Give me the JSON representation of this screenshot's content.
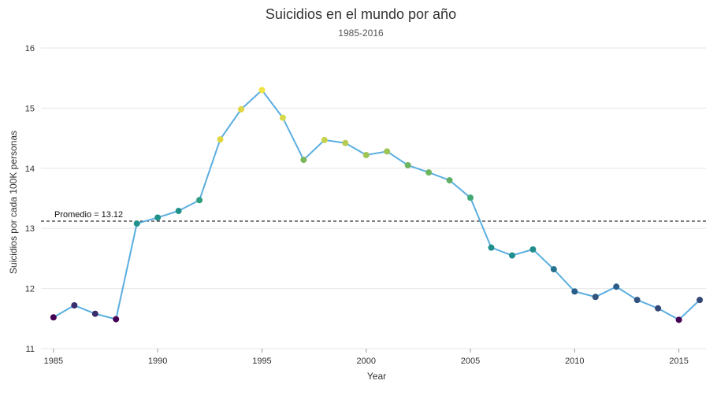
{
  "chart_data": {
    "type": "line",
    "title": "Suicidios en el mundo por año",
    "subtitle": "1985-2016",
    "xlabel": "Year",
    "ylabel": "Suicidios por cada 100K personas",
    "xlim": [
      1984.4,
      2016.3
    ],
    "ylim": [
      11,
      16
    ],
    "x_ticks": [
      1985,
      1990,
      1995,
      2000,
      2005,
      2010,
      2015
    ],
    "y_ticks": [
      11,
      12,
      13,
      14,
      15,
      16
    ],
    "grid": true,
    "line_color": "#5aaee0",
    "x": [
      1985,
      1986,
      1987,
      1988,
      1989,
      1990,
      1991,
      1992,
      1993,
      1994,
      1995,
      1996,
      1997,
      1998,
      1999,
      2000,
      2001,
      2002,
      2003,
      2004,
      2005,
      2006,
      2007,
      2008,
      2009,
      2010,
      2011,
      2012,
      2013,
      2014,
      2015,
      2016
    ],
    "values": [
      11.52,
      11.72,
      11.58,
      11.49,
      13.08,
      13.18,
      13.29,
      13.47,
      14.48,
      14.98,
      15.3,
      14.84,
      14.14,
      14.47,
      14.42,
      14.22,
      14.28,
      14.05,
      13.93,
      13.8,
      13.51,
      12.68,
      12.55,
      12.65,
      12.32,
      11.95,
      11.86,
      12.03,
      11.81,
      11.67,
      11.48,
      11.81
    ],
    "point_colors": [
      "#440154",
      "#3b2c6e",
      "#3b2c6e",
      "#440154",
      "#21918c",
      "#21918c",
      "#21918c",
      "#2f9e80",
      "#e0d642",
      "#e0d642",
      "#f0e442",
      "#d6d94a",
      "#7ab75c",
      "#c4d24e",
      "#b8cc52",
      "#9ec456",
      "#9ec456",
      "#6db55e",
      "#6db55e",
      "#5fae66",
      "#42a876",
      "#1f8e8c",
      "#1f8e8c",
      "#1f8e8c",
      "#27718d",
      "#2a5e8a",
      "#31537e",
      "#2b5d8a",
      "#31537e",
      "#344878",
      "#440154",
      "#344878"
    ],
    "reference_line": {
      "value": 13.12,
      "label": "Promedio = 13.12",
      "style": "dashed",
      "color": "#000000"
    }
  }
}
